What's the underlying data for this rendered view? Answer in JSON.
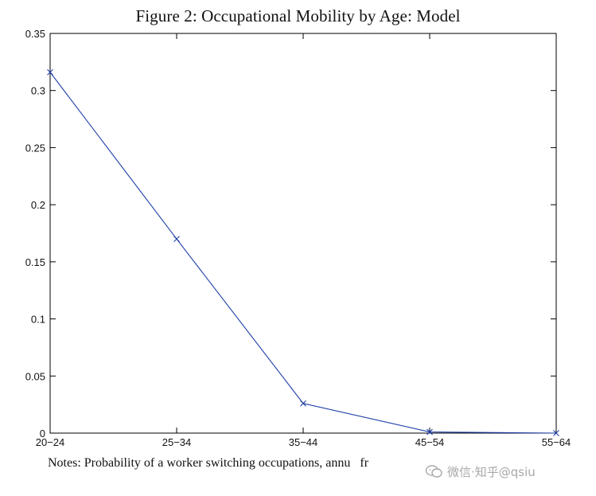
{
  "chart_data": {
    "type": "line",
    "title": "Figure 2: Occupational Mobility by Age: Model",
    "xlabel": "",
    "ylabel": "",
    "categories": [
      "20−24",
      "25−34",
      "35−44",
      "45−54",
      "55−64"
    ],
    "series": [
      {
        "values": [
          0.316,
          0.17,
          0.026,
          0.001,
          0.0
        ],
        "marker": "x",
        "color": "#1f3fa8"
      }
    ],
    "ylim": [
      0,
      0.35
    ],
    "yticks": [
      0,
      0.05,
      0.1,
      0.15,
      0.2,
      0.25,
      0.3,
      0.35
    ],
    "ytick_labels": [
      "0",
      "0.05",
      "0.1",
      "0.15",
      "0.2",
      "0.25",
      "0.3",
      "0.35"
    ],
    "grid": false,
    "legend": "none"
  },
  "notes": "Notes: Probability of a worker switching occupations, annu   fr",
  "watermark": {
    "icon": "wechat-icon",
    "text": "微信·知乎@qsiu"
  }
}
